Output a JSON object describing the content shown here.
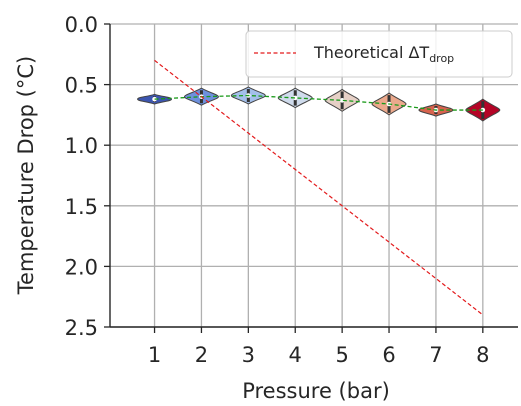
{
  "chart_data": {
    "type": "violin",
    "xlabel": "Pressure (bar)",
    "ylabel": "Temperature Drop (°C)",
    "x_ticks": [
      "1",
      "2",
      "3",
      "4",
      "5",
      "6",
      "7",
      "8"
    ],
    "y_ticks": [
      "0.0",
      "0.5",
      "1.0",
      "1.5",
      "2.0",
      "2.5"
    ],
    "ylim": [
      2.5,
      0.0
    ],
    "y_inverted": true,
    "grid": true,
    "legend": {
      "placement": "top-right",
      "entries": [
        {
          "label_main": "Theoretical ΔT",
          "label_sub": "drop",
          "style": "red dashed line"
        }
      ]
    },
    "series": [
      {
        "kind": "violin",
        "x": [
          1,
          2,
          3,
          4,
          5,
          6,
          7,
          8
        ],
        "medians": [
          0.62,
          0.6,
          0.59,
          0.61,
          0.63,
          0.66,
          0.71,
          0.71
        ],
        "spreads": [
          0.04,
          0.07,
          0.07,
          0.08,
          0.09,
          0.09,
          0.05,
          0.09
        ],
        "colors": [
          "#3c55b0",
          "#6d90dd",
          "#a3bfea",
          "#cfdbec",
          "#e6d0c6",
          "#eca98c",
          "#d8634e",
          "#b40426"
        ]
      },
      {
        "kind": "mean-line",
        "x": [
          1,
          2,
          3,
          4,
          5,
          6,
          7,
          8
        ],
        "values": [
          0.62,
          0.6,
          0.59,
          0.61,
          0.63,
          0.66,
          0.71,
          0.71
        ],
        "color": "#1a9a1a"
      },
      {
        "name": "Theoretical ΔT_drop",
        "kind": "line",
        "x": [
          1,
          8
        ],
        "values": [
          0.3,
          2.4
        ],
        "color": "#e31a1c"
      }
    ]
  }
}
